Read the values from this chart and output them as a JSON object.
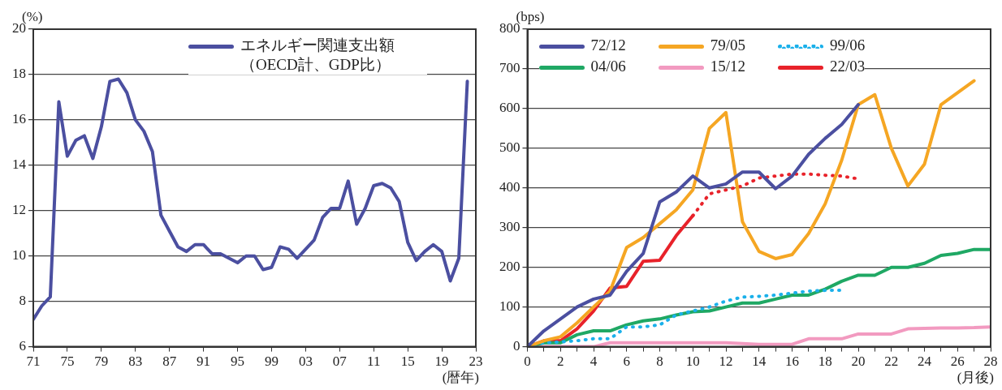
{
  "chart_data": [
    {
      "type": "line",
      "ylabel": "(%)",
      "xlabel": "(暦年)",
      "x": [
        1971,
        1972,
        1973,
        1974,
        1975,
        1976,
        1977,
        1978,
        1979,
        1980,
        1981,
        1982,
        1983,
        1984,
        1985,
        1986,
        1987,
        1988,
        1989,
        1990,
        1991,
        1992,
        1993,
        1994,
        1995,
        1996,
        1997,
        1998,
        1999,
        2000,
        2001,
        2002,
        2003,
        2004,
        2005,
        2006,
        2007,
        2008,
        2009,
        2010,
        2011,
        2012,
        2013,
        2014,
        2015,
        2016,
        2017,
        2018,
        2019,
        2020,
        2021,
        2022
      ],
      "series": [
        {
          "name": "エネルギー関連支出額（OECD計、GDP比）",
          "color": "#4b4fa0",
          "values": [
            7.2,
            7.8,
            8.2,
            16.8,
            14.4,
            15.1,
            15.3,
            14.3,
            15.7,
            17.7,
            17.8,
            17.2,
            16.0,
            15.5,
            14.6,
            11.8,
            11.1,
            10.4,
            10.2,
            10.5,
            10.5,
            10.1,
            10.1,
            9.9,
            9.7,
            10.0,
            10.0,
            9.4,
            9.5,
            10.4,
            10.3,
            9.9,
            10.3,
            10.7,
            11.7,
            12.1,
            12.1,
            13.3,
            11.4,
            12.1,
            13.1,
            13.2,
            13.0,
            12.4,
            10.6,
            9.8,
            10.2,
            10.5,
            10.2,
            8.9,
            9.9,
            17.7
          ]
        }
      ],
      "xlim": [
        1971,
        2023
      ],
      "xticks": [
        {
          "value": 1971,
          "label": "71"
        },
        {
          "value": 1975,
          "label": "75"
        },
        {
          "value": 1979,
          "label": "79"
        },
        {
          "value": 1983,
          "label": "83"
        },
        {
          "value": 1987,
          "label": "87"
        },
        {
          "value": 1991,
          "label": "91"
        },
        {
          "value": 1995,
          "label": "95"
        },
        {
          "value": 1999,
          "label": "99"
        },
        {
          "value": 2003,
          "label": "03"
        },
        {
          "value": 2007,
          "label": "07"
        },
        {
          "value": 2011,
          "label": "11"
        },
        {
          "value": 2015,
          "label": "15"
        },
        {
          "value": 2019,
          "label": "19"
        },
        {
          "value": 2023,
          "label": "23"
        }
      ],
      "ylim": [
        6,
        20
      ],
      "yticks": [
        6,
        8,
        10,
        12,
        14,
        16,
        18,
        20
      ],
      "grid": "y",
      "legend": "top right"
    },
    {
      "type": "line",
      "ylabel": "(bps)",
      "xlabel": "(月後)",
      "x": [
        0,
        1,
        2,
        3,
        4,
        5,
        6,
        7,
        8,
        9,
        10,
        11,
        12,
        13,
        14,
        15,
        16,
        17,
        18,
        19,
        20,
        21,
        22,
        23,
        24,
        25,
        26,
        27,
        28
      ],
      "series": [
        {
          "name": "72/12",
          "color": "#4b4fa0",
          "values": [
            0,
            40,
            70,
            100,
            120,
            130,
            190,
            235,
            365,
            390,
            430,
            400,
            410,
            440,
            440,
            398,
            430,
            485,
            525,
            560,
            610,
            null,
            null,
            null,
            null,
            null,
            null,
            null,
            null
          ]
        },
        {
          "name": "79/05",
          "color": "#f5a623",
          "values": [
            0,
            15,
            25,
            60,
            100,
            140,
            250,
            275,
            310,
            345,
            395,
            550,
            590,
            315,
            240,
            222,
            232,
            285,
            360,
            470,
            610,
            635,
            500,
            405,
            460,
            610,
            640,
            670,
            null
          ]
        },
        {
          "name": "99/06",
          "color": "#1ab0ea",
          "line_style": "dotted",
          "values": [
            0,
            10,
            12,
            15,
            20,
            20,
            50,
            50,
            55,
            80,
            90,
            100,
            115,
            125,
            127,
            130,
            135,
            140,
            142,
            142,
            null,
            null,
            null,
            null,
            null,
            null,
            null,
            null,
            null
          ]
        },
        {
          "name": "04/06",
          "color": "#1fa864",
          "values": [
            0,
            10,
            10,
            30,
            40,
            40,
            55,
            65,
            70,
            80,
            88,
            90,
            100,
            110,
            110,
            120,
            130,
            130,
            145,
            165,
            180,
            180,
            200,
            200,
            210,
            230,
            235,
            245,
            245
          ]
        },
        {
          "name": "15/12",
          "color": "#f29ac0",
          "values": [
            0,
            0,
            0,
            0,
            0,
            10,
            10,
            10,
            10,
            10,
            10,
            10,
            10,
            8,
            6,
            6,
            6,
            20,
            20,
            20,
            32,
            32,
            32,
            45,
            46,
            47,
            47,
            48,
            50
          ]
        },
        {
          "name": "22/03",
          "color": "#e8222a",
          "values": [
            0,
            15,
            15,
            45,
            90,
            148,
            152,
            215,
            218,
            280,
            330,
            null,
            null,
            null,
            null,
            null,
            null,
            null,
            null,
            null,
            null,
            null,
            null,
            null,
            null,
            null,
            null,
            null,
            null
          ]
        },
        {
          "color": "#e8222a",
          "line_style": "dotted",
          "values": [
            null,
            null,
            null,
            null,
            null,
            null,
            null,
            null,
            null,
            null,
            330,
            385,
            395,
            405,
            425,
            430,
            435,
            435,
            432,
            430,
            423,
            null,
            null,
            null,
            null,
            null,
            null,
            null,
            null
          ]
        }
      ],
      "xlim": [
        0,
        28
      ],
      "xticks": [
        0,
        {
          "value": 1,
          "label": null
        },
        2,
        {
          "value": 3,
          "label": null
        },
        4,
        {
          "value": 5,
          "label": null
        },
        6,
        {
          "value": 7,
          "label": null
        },
        8,
        {
          "value": 9,
          "label": null
        },
        10,
        {
          "value": 11,
          "label": null
        },
        12,
        {
          "value": 13,
          "label": null
        },
        14,
        {
          "value": 15,
          "label": null
        },
        16,
        {
          "value": 17,
          "label": null
        },
        18,
        {
          "value": 19,
          "label": null
        },
        20,
        {
          "value": 21,
          "label": null
        },
        22,
        {
          "value": 23,
          "label": null
        },
        24,
        {
          "value": 25,
          "label": null
        },
        26,
        {
          "value": 27,
          "label": null
        },
        28
      ],
      "ylim": [
        0,
        800
      ],
      "yticks": [
        0,
        100,
        200,
        300,
        400,
        500,
        600,
        700,
        800
      ],
      "grid": "y",
      "legend": "top left"
    }
  ]
}
